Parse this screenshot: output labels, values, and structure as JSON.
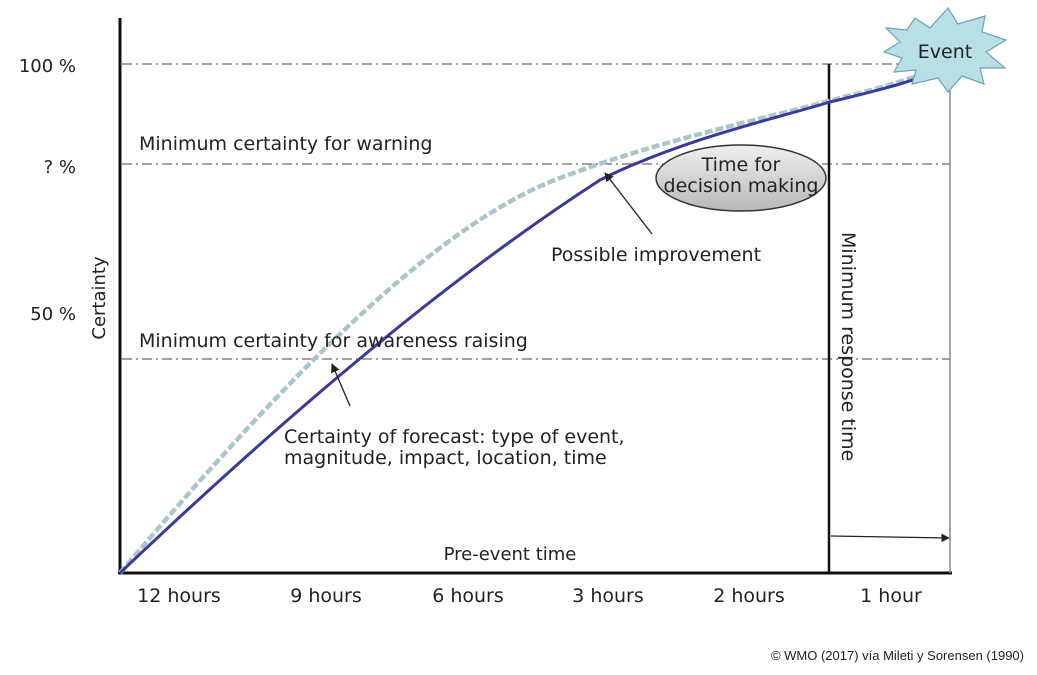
{
  "y_axis": {
    "label": "Certainty",
    "ticks": [
      "100 %",
      "? %",
      "50 %"
    ]
  },
  "x_axis": {
    "label": "Pre-event time",
    "ticks": [
      "12 hours",
      "9 hours",
      "6 hours",
      "3 hours",
      "2 hours",
      "1 hour"
    ]
  },
  "thresholds": {
    "warning": "Minimum certainty for warning",
    "awareness": "Minimum certainty for awareness raising"
  },
  "annotations": {
    "event": "Event",
    "decision_line1": "Time for",
    "decision_line2": "decision making",
    "improvement": "Possible improvement",
    "forecast_line1": "Certainty of forecast: type of event,",
    "forecast_line2": "magnitude, impact, location, time",
    "response_time": "Minimum response time"
  },
  "credit": "© WMO (2017) vía Mileti y Sorensen (1990)",
  "colors": {
    "forecast_curve": "#3a3a9a",
    "improved_curve": "#aac6cc",
    "event_star": "#b9dfe6",
    "decision_ellipse": "#cfcfcf"
  }
}
